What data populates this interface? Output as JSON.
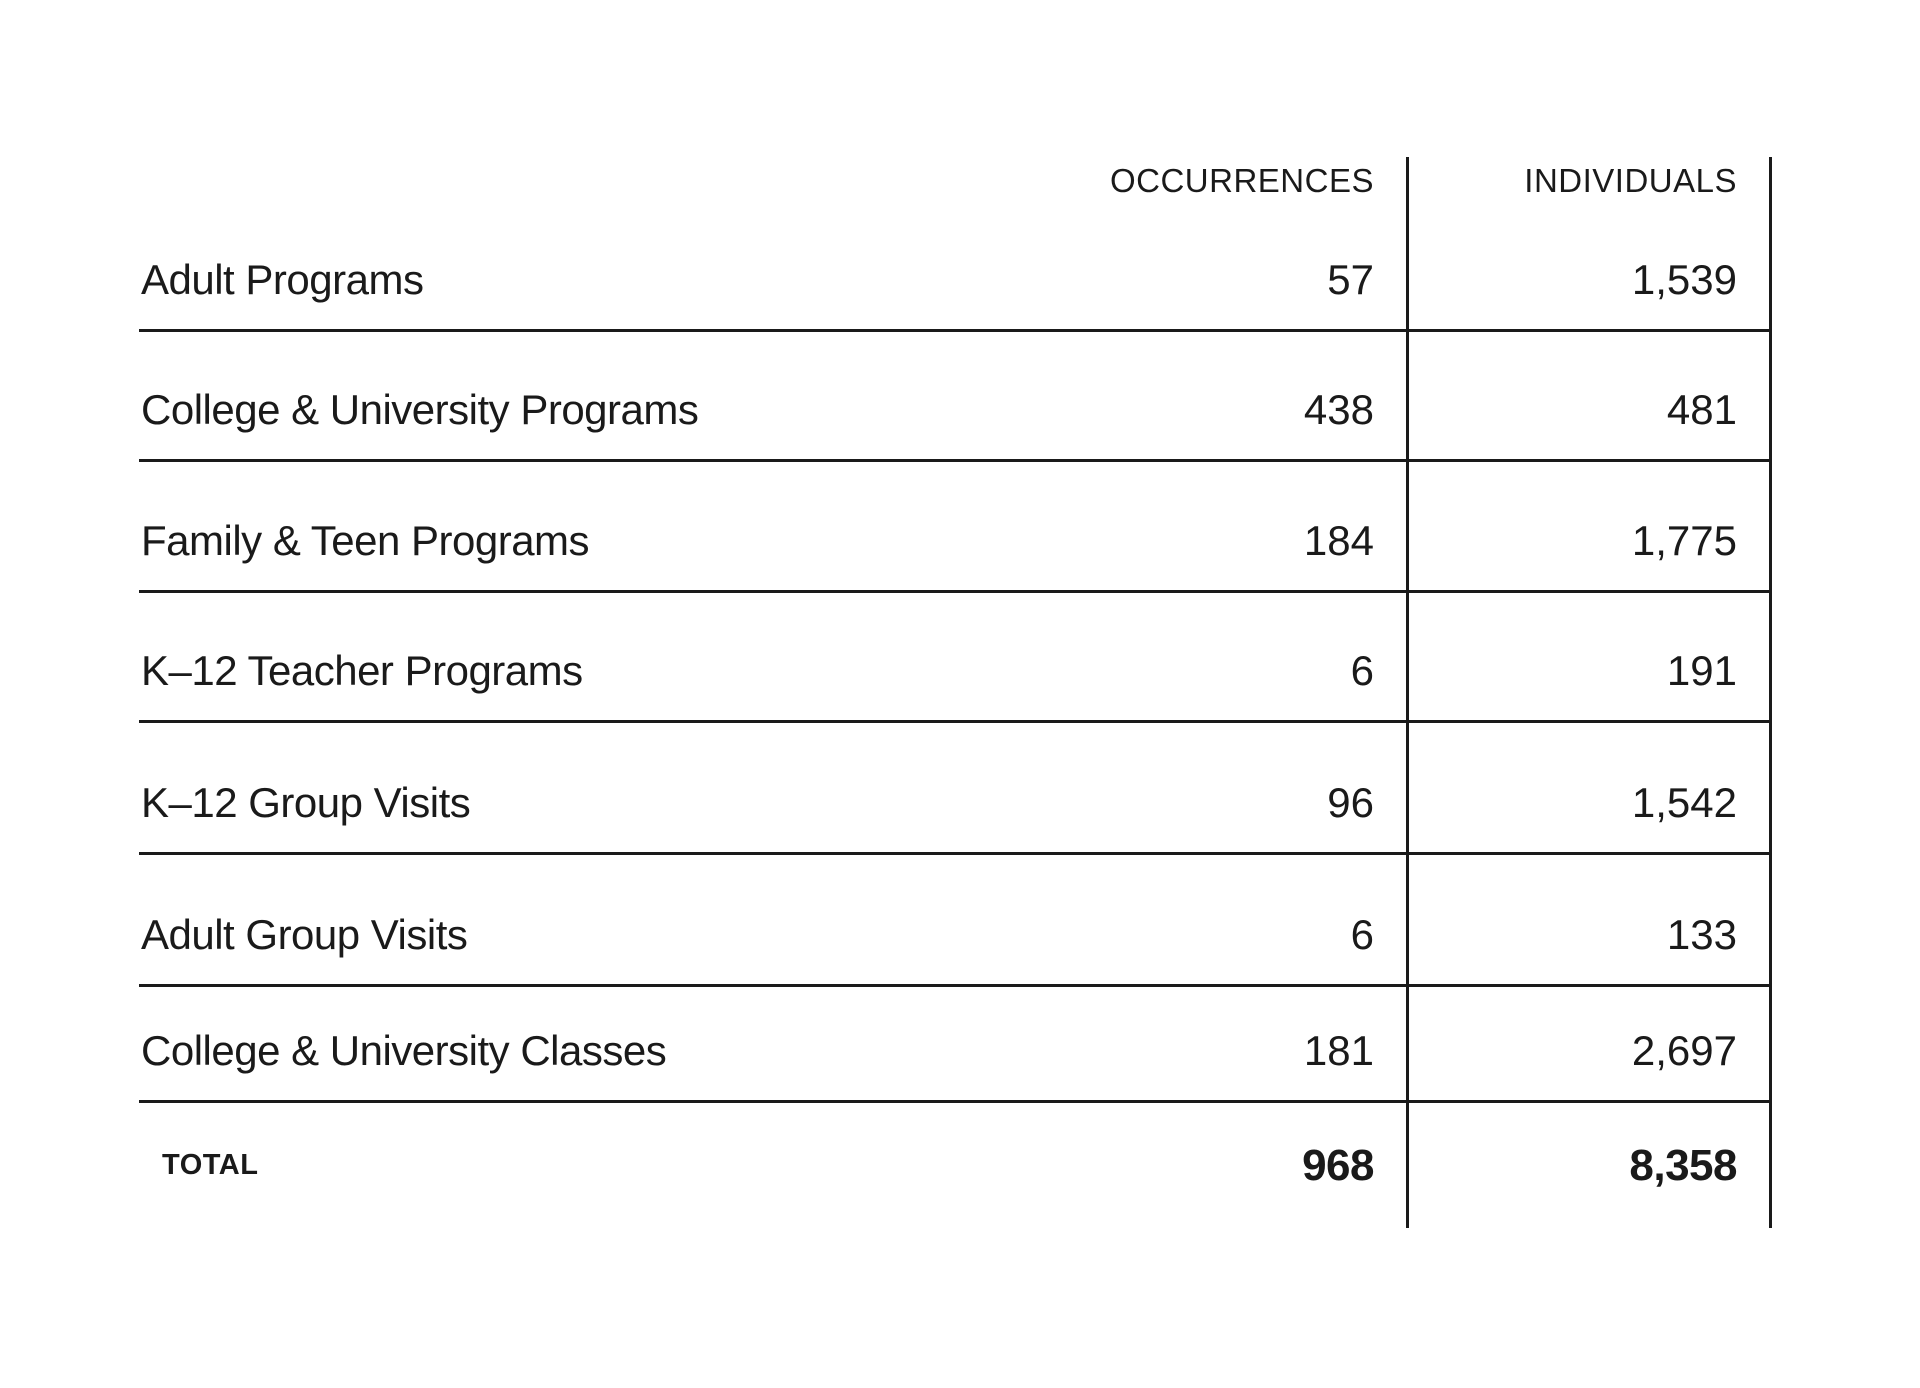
{
  "colors": {
    "text": "#1a1a1a",
    "line": "#1a1a1a",
    "background": "#ffffff"
  },
  "table": {
    "columns": [
      "OCCURRENCES",
      "INDIVIDUALS"
    ],
    "rows": [
      {
        "label": "Adult Programs",
        "occurrences": "57",
        "individuals": "1,539"
      },
      {
        "label": "College & University Programs",
        "occurrences": "438",
        "individuals": "481"
      },
      {
        "label": "Family & Teen Programs",
        "occurrences": "184",
        "individuals": "1,775"
      },
      {
        "label": "K–12 Teacher Programs",
        "occurrences": "6",
        "individuals": "191"
      },
      {
        "label": "K–12 Group Visits",
        "occurrences": "96",
        "individuals": "1,542"
      },
      {
        "label": "Adult Group Visits",
        "occurrences": "6",
        "individuals": "133"
      },
      {
        "label": "College & University Classes",
        "occurrences": "181",
        "individuals": "2,697"
      }
    ],
    "total": {
      "label": "TOTAL",
      "occurrences": "968",
      "individuals": "8,358"
    }
  }
}
